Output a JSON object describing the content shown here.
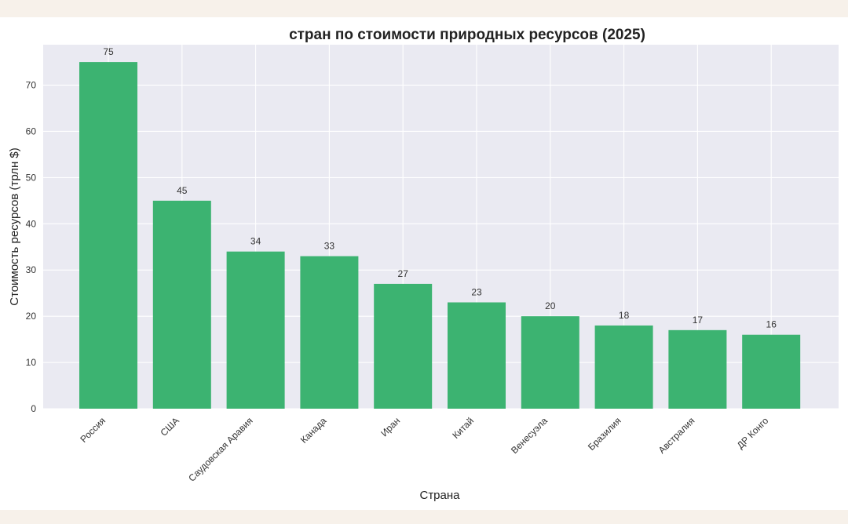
{
  "chart_data": {
    "type": "bar",
    "title": "стран по стоимости природных ресурсов (2025)",
    "xlabel": "Страна",
    "ylabel": "Стоимость ресурсов (трлн $)",
    "categories": [
      "Россия",
      "США",
      "Саудовская Аравия",
      "Канада",
      "Иран",
      "Китай",
      "Венесуэла",
      "Бразилия",
      "Австралия",
      "ДР Конго"
    ],
    "values": [
      75,
      45,
      34,
      33,
      27,
      23,
      20,
      18,
      17,
      16
    ],
    "ylim": [
      0,
      75
    ],
    "yticks": [
      0,
      10,
      20,
      30,
      40,
      50,
      60,
      70
    ],
    "grid": true,
    "bar_color": "#3cb371",
    "plot_background": "#eaeaf2"
  }
}
